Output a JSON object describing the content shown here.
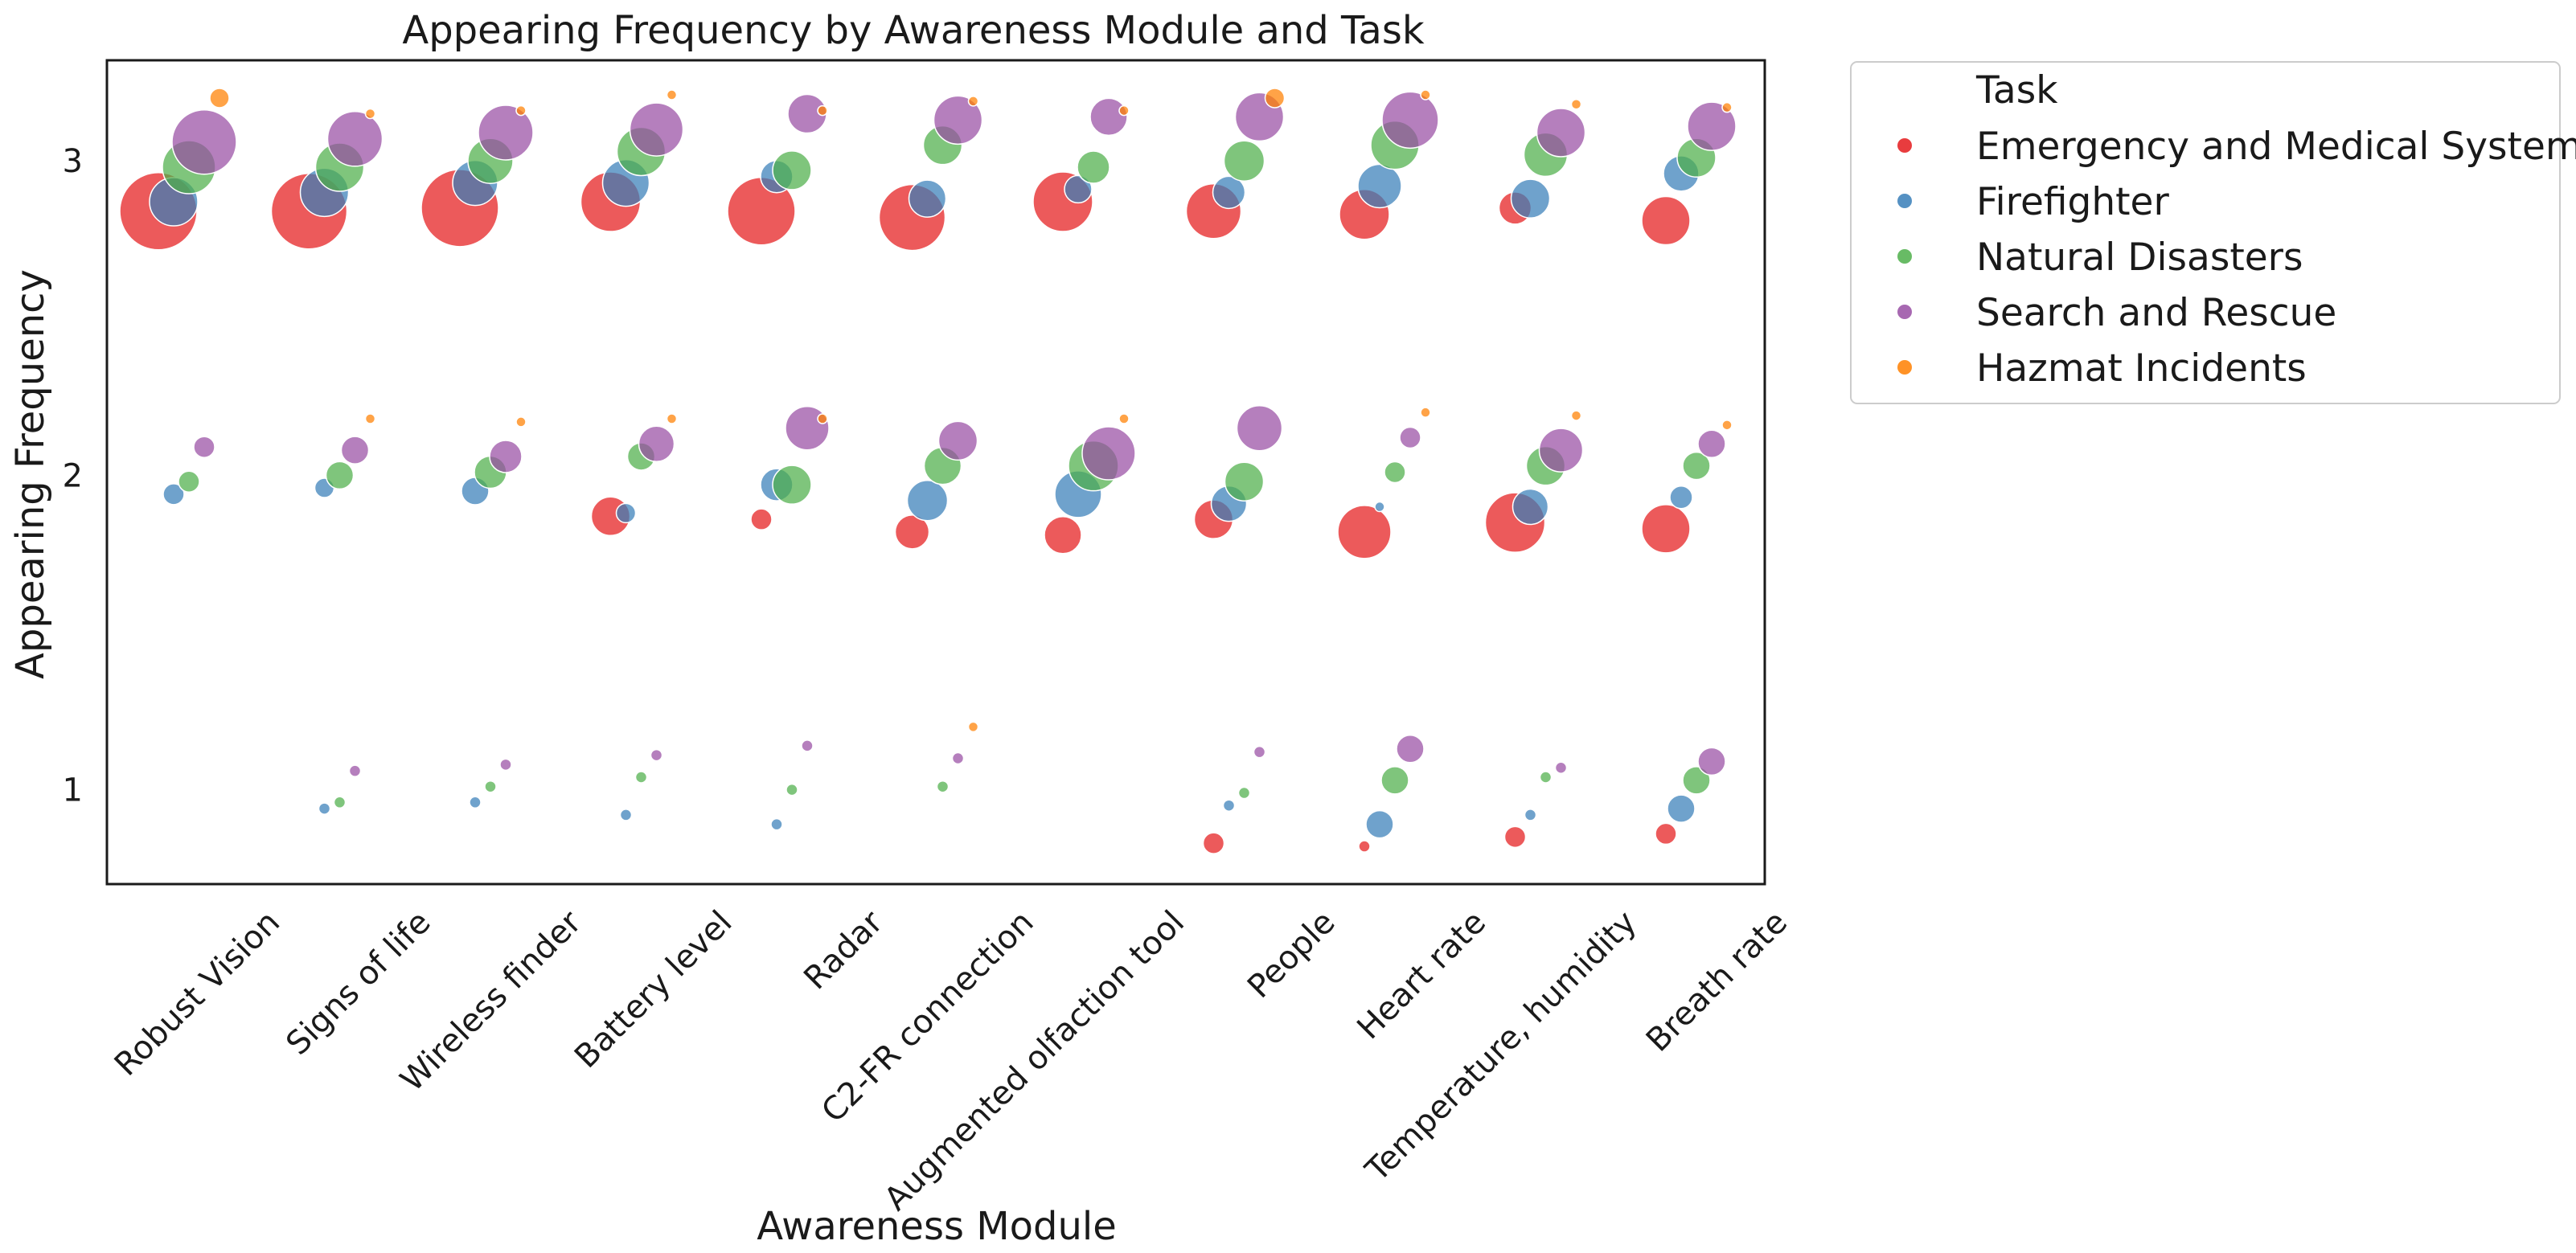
{
  "chart_data": {
    "type": "scatter",
    "title": "Appearing Frequency by Awareness Module and Task",
    "xlabel": "Awareness Module",
    "ylabel": "Appearing Frequency",
    "categories": [
      "Robust Vision",
      "Signs of life",
      "Wireless finder",
      "Battery level",
      "Radar",
      "C2-FR connection",
      "Augmented olfaction tool",
      "People",
      "Heart rate",
      "Temperature, humidity",
      "Breath rate"
    ],
    "yticks": [
      1,
      2,
      3
    ],
    "ylim": [
      0.7,
      3.32
    ],
    "grid": false,
    "legend": {
      "title": "Task",
      "placement": "outside-top-right",
      "entries": [
        "Emergency and Medical System",
        "Firefighter",
        "Natural Disasters",
        "Search and Rescue",
        "Hazmat Incidents"
      ]
    },
    "series": [
      {
        "name": "Emergency and Medical System",
        "color": "#e41a1c",
        "points": [
          {
            "x": 0,
            "y": 2.84,
            "r": 48
          },
          {
            "x": 1,
            "y": 2.84,
            "r": 47
          },
          {
            "x": 2,
            "y": 2.85,
            "r": 48
          },
          {
            "x": 3,
            "y": 2.87,
            "r": 37
          },
          {
            "x": 4,
            "y": 2.84,
            "r": 42
          },
          {
            "x": 5,
            "y": 2.82,
            "r": 41
          },
          {
            "x": 6,
            "y": 2.87,
            "r": 37
          },
          {
            "x": 7,
            "y": 2.84,
            "r": 34
          },
          {
            "x": 8,
            "y": 2.83,
            "r": 31
          },
          {
            "x": 9,
            "y": 2.85,
            "r": 20
          },
          {
            "x": 10,
            "y": 2.81,
            "r": 30
          },
          {
            "x": 3,
            "y": 1.87,
            "r": 24
          },
          {
            "x": 4,
            "y": 1.86,
            "r": 13
          },
          {
            "x": 5,
            "y": 1.82,
            "r": 21
          },
          {
            "x": 6,
            "y": 1.81,
            "r": 23
          },
          {
            "x": 7,
            "y": 1.86,
            "r": 24
          },
          {
            "x": 8,
            "y": 1.82,
            "r": 33
          },
          {
            "x": 9,
            "y": 1.85,
            "r": 37
          },
          {
            "x": 10,
            "y": 1.83,
            "r": 30
          },
          {
            "x": 7,
            "y": 0.83,
            "r": 13
          },
          {
            "x": 8,
            "y": 0.82,
            "r": 7
          },
          {
            "x": 9,
            "y": 0.85,
            "r": 13
          },
          {
            "x": 10,
            "y": 0.86,
            "r": 13
          }
        ]
      },
      {
        "name": "Firefighter",
        "color": "#377eb8",
        "points": [
          {
            "x": 0,
            "y": 2.87,
            "r": 30
          },
          {
            "x": 1,
            "y": 2.9,
            "r": 30
          },
          {
            "x": 2,
            "y": 2.93,
            "r": 28
          },
          {
            "x": 3,
            "y": 2.93,
            "r": 29
          },
          {
            "x": 4,
            "y": 2.95,
            "r": 20
          },
          {
            "x": 5,
            "y": 2.88,
            "r": 23
          },
          {
            "x": 6,
            "y": 2.91,
            "r": 17
          },
          {
            "x": 7,
            "y": 2.9,
            "r": 20
          },
          {
            "x": 8,
            "y": 2.92,
            "r": 27
          },
          {
            "x": 9,
            "y": 2.88,
            "r": 24
          },
          {
            "x": 10,
            "y": 2.96,
            "r": 22
          },
          {
            "x": 0,
            "y": 1.94,
            "r": 13
          },
          {
            "x": 1,
            "y": 1.96,
            "r": 12
          },
          {
            "x": 2,
            "y": 1.95,
            "r": 17
          },
          {
            "x": 3,
            "y": 1.88,
            "r": 12
          },
          {
            "x": 4,
            "y": 1.97,
            "r": 20
          },
          {
            "x": 5,
            "y": 1.92,
            "r": 25
          },
          {
            "x": 6,
            "y": 1.94,
            "r": 29
          },
          {
            "x": 7,
            "y": 1.91,
            "r": 22
          },
          {
            "x": 8,
            "y": 1.9,
            "r": 6
          },
          {
            "x": 9,
            "y": 1.9,
            "r": 22
          },
          {
            "x": 10,
            "y": 1.93,
            "r": 14
          },
          {
            "x": 1,
            "y": 0.94,
            "r": 7
          },
          {
            "x": 2,
            "y": 0.96,
            "r": 7
          },
          {
            "x": 3,
            "y": 0.92,
            "r": 7
          },
          {
            "x": 4,
            "y": 0.89,
            "r": 7
          },
          {
            "x": 7,
            "y": 0.95,
            "r": 7
          },
          {
            "x": 8,
            "y": 0.89,
            "r": 17
          },
          {
            "x": 9,
            "y": 0.92,
            "r": 7
          },
          {
            "x": 10,
            "y": 0.94,
            "r": 17
          }
        ]
      },
      {
        "name": "Natural Disasters",
        "color": "#4daf4a",
        "points": [
          {
            "x": 0,
            "y": 2.98,
            "r": 33
          },
          {
            "x": 1,
            "y": 2.98,
            "r": 30
          },
          {
            "x": 2,
            "y": 3.0,
            "r": 28
          },
          {
            "x": 3,
            "y": 3.03,
            "r": 30
          },
          {
            "x": 4,
            "y": 2.97,
            "r": 24
          },
          {
            "x": 5,
            "y": 3.05,
            "r": 24
          },
          {
            "x": 6,
            "y": 2.98,
            "r": 20
          },
          {
            "x": 7,
            "y": 3.0,
            "r": 25
          },
          {
            "x": 8,
            "y": 3.05,
            "r": 30
          },
          {
            "x": 9,
            "y": 3.02,
            "r": 27
          },
          {
            "x": 10,
            "y": 3.01,
            "r": 24
          },
          {
            "x": 0,
            "y": 1.98,
            "r": 13
          },
          {
            "x": 1,
            "y": 2.0,
            "r": 17
          },
          {
            "x": 2,
            "y": 2.01,
            "r": 20
          },
          {
            "x": 3,
            "y": 2.06,
            "r": 17
          },
          {
            "x": 4,
            "y": 1.97,
            "r": 24
          },
          {
            "x": 5,
            "y": 2.03,
            "r": 23
          },
          {
            "x": 6,
            "y": 2.03,
            "r": 31
          },
          {
            "x": 7,
            "y": 1.98,
            "r": 24
          },
          {
            "x": 8,
            "y": 2.01,
            "r": 13
          },
          {
            "x": 9,
            "y": 2.03,
            "r": 24
          },
          {
            "x": 10,
            "y": 2.03,
            "r": 17
          },
          {
            "x": 1,
            "y": 0.96,
            "r": 7
          },
          {
            "x": 2,
            "y": 1.01,
            "r": 7
          },
          {
            "x": 3,
            "y": 1.04,
            "r": 7
          },
          {
            "x": 4,
            "y": 1.0,
            "r": 7
          },
          {
            "x": 5,
            "y": 1.01,
            "r": 7
          },
          {
            "x": 7,
            "y": 0.99,
            "r": 7
          },
          {
            "x": 8,
            "y": 1.03,
            "r": 17
          },
          {
            "x": 9,
            "y": 1.04,
            "r": 7
          },
          {
            "x": 10,
            "y": 1.03,
            "r": 17
          }
        ]
      },
      {
        "name": "Search and Rescue",
        "color": "#984ea3",
        "points": [
          {
            "x": 0,
            "y": 3.06,
            "r": 40
          },
          {
            "x": 1,
            "y": 3.07,
            "r": 34
          },
          {
            "x": 2,
            "y": 3.09,
            "r": 34
          },
          {
            "x": 3,
            "y": 3.1,
            "r": 33
          },
          {
            "x": 4,
            "y": 3.15,
            "r": 24
          },
          {
            "x": 5,
            "y": 3.13,
            "r": 30
          },
          {
            "x": 6,
            "y": 3.14,
            "r": 23
          },
          {
            "x": 7,
            "y": 3.14,
            "r": 30
          },
          {
            "x": 8,
            "y": 3.13,
            "r": 35
          },
          {
            "x": 9,
            "y": 3.09,
            "r": 30
          },
          {
            "x": 10,
            "y": 3.11,
            "r": 30
          },
          {
            "x": 0,
            "y": 2.09,
            "r": 13
          },
          {
            "x": 1,
            "y": 2.08,
            "r": 17
          },
          {
            "x": 2,
            "y": 2.06,
            "r": 20
          },
          {
            "x": 3,
            "y": 2.1,
            "r": 22
          },
          {
            "x": 4,
            "y": 2.15,
            "r": 27
          },
          {
            "x": 5,
            "y": 2.11,
            "r": 24
          },
          {
            "x": 6,
            "y": 2.07,
            "r": 33
          },
          {
            "x": 7,
            "y": 2.15,
            "r": 28
          },
          {
            "x": 8,
            "y": 2.12,
            "r": 13
          },
          {
            "x": 9,
            "y": 2.08,
            "r": 27
          },
          {
            "x": 10,
            "y": 2.1,
            "r": 17
          },
          {
            "x": 1,
            "y": 1.06,
            "r": 7
          },
          {
            "x": 2,
            "y": 1.08,
            "r": 7
          },
          {
            "x": 3,
            "y": 1.11,
            "r": 7
          },
          {
            "x": 4,
            "y": 1.14,
            "r": 7
          },
          {
            "x": 5,
            "y": 1.1,
            "r": 7
          },
          {
            "x": 7,
            "y": 1.12,
            "r": 7
          },
          {
            "x": 8,
            "y": 1.13,
            "r": 17
          },
          {
            "x": 9,
            "y": 1.07,
            "r": 7
          },
          {
            "x": 10,
            "y": 1.09,
            "r": 17
          }
        ]
      },
      {
        "name": "Hazmat Incidents",
        "color": "#ff7f00",
        "points": [
          {
            "x": 0,
            "y": 3.2,
            "r": 12
          },
          {
            "x": 1,
            "y": 3.15,
            "r": 6
          },
          {
            "x": 2,
            "y": 3.16,
            "r": 6
          },
          {
            "x": 3,
            "y": 3.21,
            "r": 6
          },
          {
            "x": 4,
            "y": 3.16,
            "r": 6
          },
          {
            "x": 5,
            "y": 3.19,
            "r": 6
          },
          {
            "x": 6,
            "y": 3.16,
            "r": 6
          },
          {
            "x": 7,
            "y": 3.2,
            "r": 12
          },
          {
            "x": 8,
            "y": 3.21,
            "r": 6
          },
          {
            "x": 9,
            "y": 3.18,
            "r": 6
          },
          {
            "x": 10,
            "y": 3.17,
            "r": 6
          },
          {
            "x": 1,
            "y": 2.18,
            "r": 6
          },
          {
            "x": 2,
            "y": 2.17,
            "r": 6
          },
          {
            "x": 3,
            "y": 2.18,
            "r": 6
          },
          {
            "x": 4,
            "y": 2.18,
            "r": 6
          },
          {
            "x": 6,
            "y": 2.18,
            "r": 6
          },
          {
            "x": 8,
            "y": 2.2,
            "r": 6
          },
          {
            "x": 9,
            "y": 2.19,
            "r": 6
          },
          {
            "x": 10,
            "y": 2.16,
            "r": 6
          },
          {
            "x": 5,
            "y": 1.2,
            "r": 6
          }
        ]
      }
    ]
  }
}
